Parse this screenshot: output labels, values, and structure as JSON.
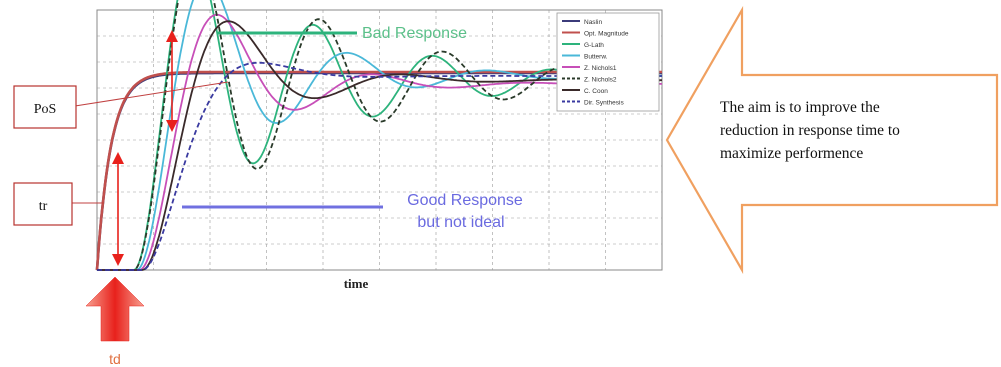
{
  "chart_data": {
    "type": "line",
    "title": "",
    "xlabel": "time",
    "ylabel": "",
    "xlim": [
      0,
      1
    ],
    "ylim": [
      0,
      1.3
    ],
    "grid": true,
    "legend_position": "top-right",
    "series": [
      {
        "name": "Naslin",
        "color": "#3b3b7a",
        "dash": false,
        "kind": "ideal",
        "params": {
          "td": 0.0,
          "tau": 0.025,
          "zeta": 1.0,
          "wn": 0,
          "final": 0.985
        }
      },
      {
        "name": "Opt. Magnitude",
        "color": "#c0504d",
        "dash": false,
        "kind": "ideal",
        "params": {
          "td": 0.0,
          "tau": 0.025,
          "zeta": 1.0,
          "wn": 0,
          "final": 0.99
        }
      },
      {
        "name": "G-Lath",
        "color": "#2db37c",
        "dash": false,
        "kind": "second_order",
        "params": {
          "td": 0.065,
          "zeta": 0.13,
          "wn": 30,
          "final": 0.95
        }
      },
      {
        "name": "Butterw.",
        "color": "#4ab8d8",
        "dash": false,
        "kind": "second_order",
        "params": {
          "td": 0.07,
          "zeta": 0.22,
          "wn": 26,
          "final": 0.97
        }
      },
      {
        "name": "Z. Nichols1",
        "color": "#c74fb8",
        "dash": false,
        "kind": "second_order",
        "params": {
          "td": 0.075,
          "zeta": 0.3,
          "wn": 24,
          "final": 0.93
        }
      },
      {
        "name": "Z. Nichols2",
        "color": "#2a3a2a",
        "dash": true,
        "kind": "second_order",
        "params": {
          "td": 0.065,
          "zeta": 0.12,
          "wn": 29,
          "final": 0.95
        }
      },
      {
        "name": "C. Coon",
        "color": "#3a2a2a",
        "dash": false,
        "kind": "second_order",
        "params": {
          "td": 0.08,
          "zeta": 0.35,
          "wn": 22,
          "final": 0.95
        }
      },
      {
        "name": "Dir. Synthesis",
        "color": "#3a3aa0",
        "dash": true,
        "kind": "second_order",
        "params": {
          "td": 0.08,
          "zeta": 0.65,
          "wn": 20,
          "final": 0.97
        }
      }
    ]
  },
  "annotations": {
    "bad_response": "Bad Response",
    "good_response_line1": "Good Response",
    "good_response_line2": "but not ideal",
    "pos_label": "PoS",
    "tr_label": "tr",
    "td_label": "td",
    "aim_line1": "The aim is to improve the",
    "aim_line2": "reduction in response time to",
    "aim_line3": "maximize performence"
  },
  "colors": {
    "arrow_red": "#e8211c",
    "arrow_orange": "#f0a060",
    "bad_response_text": "#5cc08a",
    "good_response_text": "#6a6ae0",
    "label_box_border": "#b8322e"
  }
}
